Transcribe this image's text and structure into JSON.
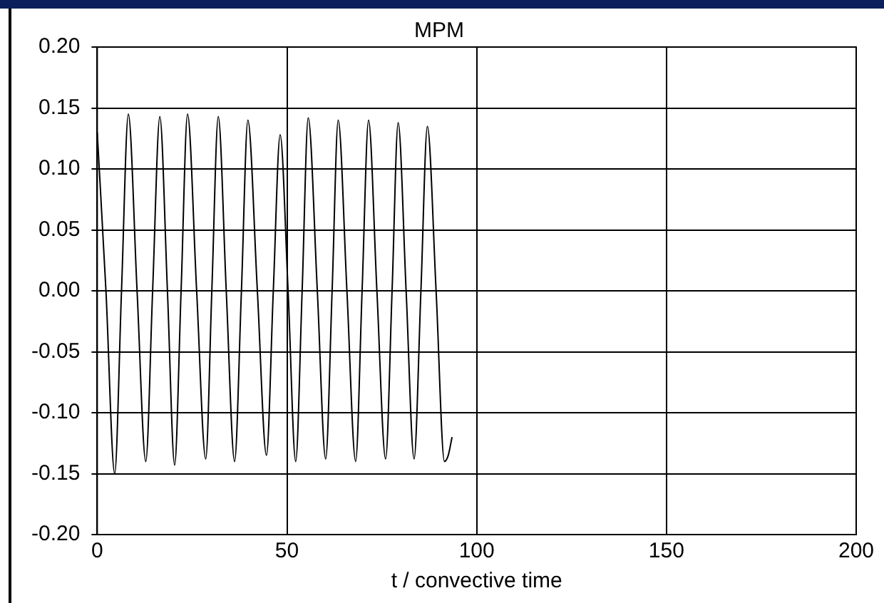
{
  "chart_data": {
    "type": "line",
    "title": "MPM",
    "xlabel": "t / convective time",
    "xlim": [
      0,
      200
    ],
    "xticks": [
      0,
      50,
      100,
      150,
      200
    ],
    "ylim": [
      -0.2,
      0.2
    ],
    "yticks": [
      {
        "value": -0.2,
        "label": "-0.20"
      },
      {
        "value": -0.15,
        "label": "-0.15"
      },
      {
        "value": -0.1,
        "label": "-0.10"
      },
      {
        "value": -0.05,
        "label": "-0.05"
      },
      {
        "value": 0,
        "label": "0.00"
      },
      {
        "value": 0.05,
        "label": "0.05"
      },
      {
        "value": 0.1,
        "label": "0.10"
      },
      {
        "value": 0.15,
        "label": "0.15"
      },
      {
        "value": 0.2,
        "label": "0.20"
      }
    ],
    "grid": true,
    "legend": false,
    "marker": "none",
    "line_style": "solid",
    "series": [
      {
        "color": "#000000",
        "x": [
          0,
          2.3,
          4.6,
          6.4,
          8.2,
          10.5,
          12.8,
          14.6,
          16.5,
          18.5,
          20.4,
          22.1,
          23.8,
          26.2,
          28.6,
          30.2,
          31.9,
          34,
          36.2,
          38,
          39.7,
          42.2,
          44.6,
          46.4,
          48.2,
          50.3,
          52.3,
          54,
          55.6,
          58,
          60.2,
          61.9,
          63.5,
          65.8,
          68.1,
          69.8,
          71.5,
          73.7,
          76,
          77.7,
          79.3,
          81.4,
          83.5,
          85.3,
          87,
          89.3,
          91.5,
          92.5,
          93.5
        ],
        "values": [
          0.13,
          0,
          -0.15,
          0,
          0.145,
          0,
          -0.14,
          0,
          0.143,
          0,
          -0.143,
          0,
          0.145,
          0,
          -0.138,
          0,
          0.143,
          0,
          -0.14,
          0,
          0.14,
          0,
          -0.135,
          0,
          0.128,
          0,
          -0.14,
          0,
          0.142,
          0,
          -0.138,
          0,
          0.14,
          0,
          -0.14,
          0,
          0.14,
          0,
          -0.138,
          0,
          0.138,
          0,
          -0.138,
          0,
          0.135,
          0,
          -0.14,
          -0.135,
          -0.12
        ]
      }
    ]
  }
}
